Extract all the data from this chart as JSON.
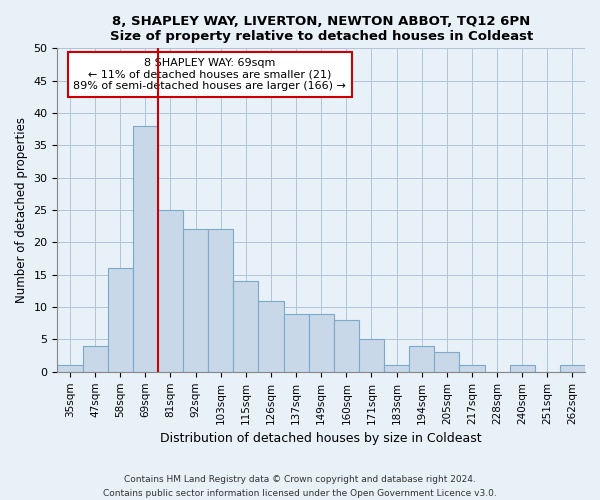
{
  "title": "8, SHAPLEY WAY, LIVERTON, NEWTON ABBOT, TQ12 6PN",
  "subtitle": "Size of property relative to detached houses in Coldeast",
  "xlabel": "Distribution of detached houses by size in Coldeast",
  "ylabel": "Number of detached properties",
  "bar_labels": [
    "35sqm",
    "47sqm",
    "58sqm",
    "69sqm",
    "81sqm",
    "92sqm",
    "103sqm",
    "115sqm",
    "126sqm",
    "137sqm",
    "149sqm",
    "160sqm",
    "171sqm",
    "183sqm",
    "194sqm",
    "205sqm",
    "217sqm",
    "228sqm",
    "240sqm",
    "251sqm",
    "262sqm"
  ],
  "bar_values": [
    1,
    4,
    16,
    38,
    25,
    22,
    22,
    14,
    11,
    9,
    9,
    8,
    5,
    1,
    4,
    3,
    1,
    0,
    1,
    0,
    1
  ],
  "bar_color": "#c8d8e8",
  "bar_edge_color": "#7aaac8",
  "property_line_color": "#cc0000",
  "property_line_idx": 3,
  "ylim": [
    0,
    50
  ],
  "yticks": [
    0,
    5,
    10,
    15,
    20,
    25,
    30,
    35,
    40,
    45,
    50
  ],
  "annotation_title": "8 SHAPLEY WAY: 69sqm",
  "annotation_line1": "← 11% of detached houses are smaller (21)",
  "annotation_line2": "89% of semi-detached houses are larger (166) →",
  "annotation_box_color": "#ffffff",
  "annotation_box_edge": "#cc0000",
  "footer_line1": "Contains HM Land Registry data © Crown copyright and database right 2024.",
  "footer_line2": "Contains public sector information licensed under the Open Government Licence v3.0.",
  "bg_color": "#e8f0f8"
}
